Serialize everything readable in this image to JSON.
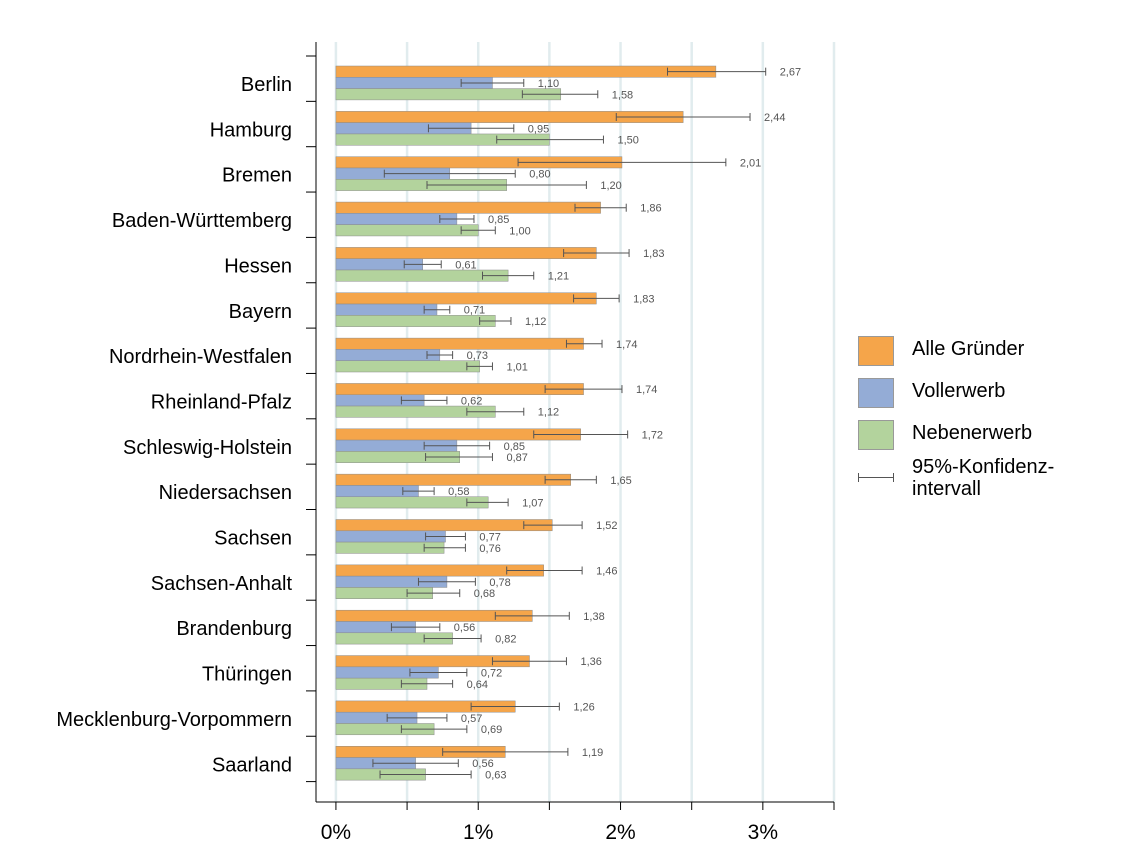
{
  "chart_data": {
    "type": "bar",
    "orientation": "horizontal",
    "categories": [
      "Berlin",
      "Hamburg",
      "Bremen",
      "Baden-Württemberg",
      "Hessen",
      "Bayern",
      "Nordrhein-Westfalen",
      "Rheinland-Pfalz",
      "Schleswig-Holstein",
      "Niedersachsen",
      "Sachsen",
      "Sachsen-Anhalt",
      "Brandenburg",
      "Thüringen",
      "Mecklenburg-Vorpommern",
      "Saarland"
    ],
    "series": [
      {
        "name": "Alle Gründer",
        "color": "#f5a54a",
        "values": [
          2.67,
          2.44,
          2.01,
          1.86,
          1.83,
          1.83,
          1.74,
          1.74,
          1.72,
          1.65,
          1.52,
          1.46,
          1.38,
          1.36,
          1.26,
          1.19
        ],
        "value_labels": [
          "2,67",
          "2,44",
          "2,01",
          "1,86",
          "1,83",
          "1,83",
          "1,74",
          "1,74",
          "1,72",
          "1,65",
          "1,52",
          "1,46",
          "1,38",
          "1,36",
          "1,26",
          "1,19"
        ],
        "ci_low": [
          2.33,
          1.97,
          1.28,
          1.68,
          1.6,
          1.67,
          1.62,
          1.47,
          1.39,
          1.47,
          1.32,
          1.2,
          1.12,
          1.1,
          0.95,
          0.75
        ],
        "ci_high": [
          3.02,
          2.91,
          2.74,
          2.04,
          2.06,
          1.99,
          1.87,
          2.01,
          2.05,
          1.83,
          1.73,
          1.73,
          1.64,
          1.62,
          1.57,
          1.63
        ]
      },
      {
        "name": "Vollerwerb",
        "color": "#94acd6",
        "values": [
          1.1,
          0.95,
          0.8,
          0.85,
          0.61,
          0.71,
          0.73,
          0.62,
          0.85,
          0.58,
          0.77,
          0.78,
          0.56,
          0.72,
          0.57,
          0.56
        ],
        "value_labels": [
          "1,10",
          "0,95",
          "0,80",
          "0,85",
          "0,61",
          "0,71",
          "0,73",
          "0,62",
          "0,85",
          "0,58",
          "0,77",
          "0,78",
          "0,56",
          "0,72",
          "0,57",
          "0,56"
        ],
        "ci_low": [
          0.88,
          0.65,
          0.34,
          0.73,
          0.48,
          0.62,
          0.64,
          0.46,
          0.62,
          0.47,
          0.63,
          0.58,
          0.39,
          0.52,
          0.36,
          0.26
        ],
        "ci_high": [
          1.32,
          1.25,
          1.26,
          0.97,
          0.74,
          0.8,
          0.82,
          0.78,
          1.08,
          0.69,
          0.91,
          0.98,
          0.73,
          0.92,
          0.78,
          0.86
        ]
      },
      {
        "name": "Nebenerwerb",
        "color": "#b3d39d",
        "values": [
          1.58,
          1.5,
          1.2,
          1.0,
          1.21,
          1.12,
          1.01,
          1.12,
          0.87,
          1.07,
          0.76,
          0.68,
          0.82,
          0.64,
          0.69,
          0.63
        ],
        "value_labels": [
          "1,58",
          "1,50",
          "1,20",
          "1,00",
          "1,21",
          "1,12",
          "1,01",
          "1,12",
          "0,87",
          "1,07",
          "0,76",
          "0,68",
          "0,82",
          "0,64",
          "0,69",
          "0,63"
        ],
        "ci_low": [
          1.31,
          1.13,
          0.64,
          0.88,
          1.03,
          1.01,
          0.92,
          0.92,
          0.63,
          0.92,
          0.62,
          0.5,
          0.62,
          0.46,
          0.46,
          0.31
        ],
        "ci_high": [
          1.84,
          1.88,
          1.76,
          1.12,
          1.39,
          1.23,
          1.1,
          1.32,
          1.1,
          1.21,
          0.91,
          0.87,
          1.02,
          0.82,
          0.92,
          0.95
        ]
      }
    ],
    "xlim": [
      -0.14,
      3.5
    ],
    "x_ticks": [
      0,
      1,
      2,
      3
    ],
    "x_tick_labels": [
      "0%",
      "1%",
      "2%",
      "3%"
    ],
    "minor_ticks": [
      0.5,
      1.5,
      2.5,
      3.5
    ],
    "grid": true,
    "legend_position": "right",
    "legend": [
      "Alle Gründer",
      "Vollerwerb",
      "Nebenerwerb",
      "95%-Konfidenz-\nintervall"
    ]
  }
}
